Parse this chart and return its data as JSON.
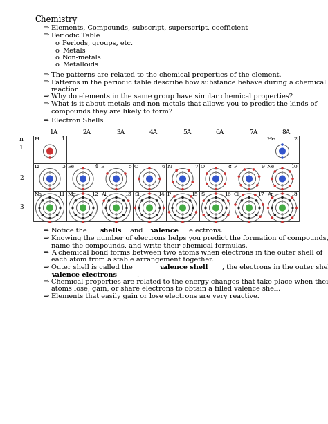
{
  "title": "Chemistry",
  "arrow": "⇒",
  "bullet_items_level1": [
    "Elements, Compounds, subscript, superscript, coefficient",
    "Periodic Table"
  ],
  "bullet_items_level2": [
    "Periods, groups, etc.",
    "Metals",
    "Non-metals",
    "Metalloids"
  ],
  "bullets_b": [
    [
      "The patterns are related to the chemical properties of the element.",
      false
    ],
    [
      "Patterns in the periodic table describe how substance behave during a chemical",
      false
    ],
    [
      "reaction.",
      false
    ],
    [
      "Why do elements in the same group have similar chemical properties?",
      false
    ],
    [
      "What is it about metals and non-metals that allows you to predict the kinds of",
      false
    ],
    [
      "compounds they are likely to form?",
      false
    ]
  ],
  "electron_shells_label": "Electron Shells",
  "col_labels": [
    "1A",
    "2A",
    "3A",
    "4A",
    "5A",
    "6A",
    "7A",
    "8A"
  ],
  "row1_data": [
    {
      "sym": "H",
      "num": 1,
      "col": 0,
      "nc": "#cc3333",
      "e1": 1,
      "e2": null,
      "e3": null,
      "ec1": "#cc3333",
      "ec2": null,
      "ec3": null
    },
    {
      "sym": "He",
      "num": 2,
      "col": 7,
      "nc": "#3355cc",
      "e1": 2,
      "e2": null,
      "e3": null,
      "ec1": "#3355cc",
      "ec2": null,
      "ec3": null
    }
  ],
  "row2_data": [
    {
      "sym": "Li",
      "num": 3,
      "col": 0,
      "nc": "#3355cc",
      "e1": 2,
      "e2": 1,
      "e3": null,
      "ec1": "#888888",
      "ec2": "#cc3333",
      "ec3": null
    },
    {
      "sym": "Be",
      "num": 4,
      "col": 1,
      "nc": "#3355cc",
      "e1": 2,
      "e2": 2,
      "e3": null,
      "ec1": "#888888",
      "ec2": "#cc3333",
      "ec3": null
    },
    {
      "sym": "B",
      "num": 5,
      "col": 2,
      "nc": "#3355cc",
      "e1": 2,
      "e2": 3,
      "e3": null,
      "ec1": "#888888",
      "ec2": "#cc3333",
      "ec3": null
    },
    {
      "sym": "C",
      "num": 6,
      "col": 3,
      "nc": "#3355cc",
      "e1": 2,
      "e2": 4,
      "e3": null,
      "ec1": "#888888",
      "ec2": "#cc3333",
      "ec3": null
    },
    {
      "sym": "N",
      "num": 7,
      "col": 4,
      "nc": "#3355cc",
      "e1": 2,
      "e2": 5,
      "e3": null,
      "ec1": "#888888",
      "ec2": "#cc3333",
      "ec3": null
    },
    {
      "sym": "O",
      "num": 8,
      "col": 5,
      "nc": "#3355cc",
      "e1": 2,
      "e2": 6,
      "e3": null,
      "ec1": "#888888",
      "ec2": "#cc3333",
      "ec3": null
    },
    {
      "sym": "F",
      "num": 9,
      "col": 6,
      "nc": "#3355cc",
      "e1": 2,
      "e2": 7,
      "e3": null,
      "ec1": "#888888",
      "ec2": "#cc3333",
      "ec3": null
    },
    {
      "sym": "Ne",
      "num": 10,
      "col": 7,
      "nc": "#3355cc",
      "e1": 2,
      "e2": 8,
      "e3": null,
      "ec1": "#888888",
      "ec2": "#cc3333",
      "ec3": null
    }
  ],
  "row3_data": [
    {
      "sym": "Na",
      "num": 11,
      "col": 0,
      "nc": "#44aa44",
      "e1": 2,
      "e2": 8,
      "e3": 1,
      "ec1": "#888888",
      "ec2": "#222222",
      "ec3": "#cc3333"
    },
    {
      "sym": "Mg",
      "num": 12,
      "col": 1,
      "nc": "#44aa44",
      "e1": 2,
      "e2": 8,
      "e3": 2,
      "ec1": "#888888",
      "ec2": "#222222",
      "ec3": "#cc3333"
    },
    {
      "sym": "Al",
      "num": 13,
      "col": 2,
      "nc": "#44aa44",
      "e1": 2,
      "e2": 8,
      "e3": 3,
      "ec1": "#888888",
      "ec2": "#222222",
      "ec3": "#cc3333"
    },
    {
      "sym": "Si",
      "num": 14,
      "col": 3,
      "nc": "#44aa44",
      "e1": 2,
      "e2": 8,
      "e3": 4,
      "ec1": "#888888",
      "ec2": "#222222",
      "ec3": "#cc3333"
    },
    {
      "sym": "P",
      "num": 15,
      "col": 4,
      "nc": "#44aa44",
      "e1": 2,
      "e2": 8,
      "e3": 5,
      "ec1": "#888888",
      "ec2": "#222222",
      "ec3": "#cc3333"
    },
    {
      "sym": "S",
      "num": 16,
      "col": 5,
      "nc": "#44aa44",
      "e1": 2,
      "e2": 8,
      "e3": 6,
      "ec1": "#888888",
      "ec2": "#222222",
      "ec3": "#cc3333"
    },
    {
      "sym": "Cl",
      "num": 17,
      "col": 6,
      "nc": "#44aa44",
      "e1": 2,
      "e2": 8,
      "e3": 7,
      "ec1": "#888888",
      "ec2": "#222222",
      "ec3": "#cc3333"
    },
    {
      "sym": "Ar",
      "num": 18,
      "col": 7,
      "nc": "#44aa44",
      "e1": 2,
      "e2": 8,
      "e3": 8,
      "ec1": "#888888",
      "ec2": "#222222",
      "ec3": "#cc3333"
    }
  ],
  "bottom_bullets": [
    {
      "parts": [
        "Notice the ",
        "shells",
        " and ",
        "valence",
        " electrons."
      ],
      "bold": [
        1,
        3
      ]
    },
    {
      "parts": [
        "Knowing the number of electrons helps you predict the formation of compounds,"
      ],
      "bold": [],
      "cont": "name the compounds, and write their chemical formulas."
    },
    {
      "parts": [
        "A chemical bond forms between two atoms when electrons in the outer shell of"
      ],
      "bold": [],
      "cont": "each atom from a stable arrangement together."
    },
    {
      "parts": [
        "Outer shell is called the ",
        "valence shell",
        ", the electrons in the outer shell are the"
      ],
      "bold": [
        1
      ],
      "cont2bold": "valence electrons",
      "cont2end": "."
    },
    {
      "parts": [
        "Chemical properties are related to the energy changes that take place when their"
      ],
      "bold": [],
      "cont": "atoms lose, gain, or share electrons to obtain a filled valence shell."
    },
    {
      "parts": [
        "Elements that easily gain or lose electrons are very reactive."
      ],
      "bold": []
    }
  ],
  "bg_color": "#ffffff",
  "text_color": "#000000"
}
